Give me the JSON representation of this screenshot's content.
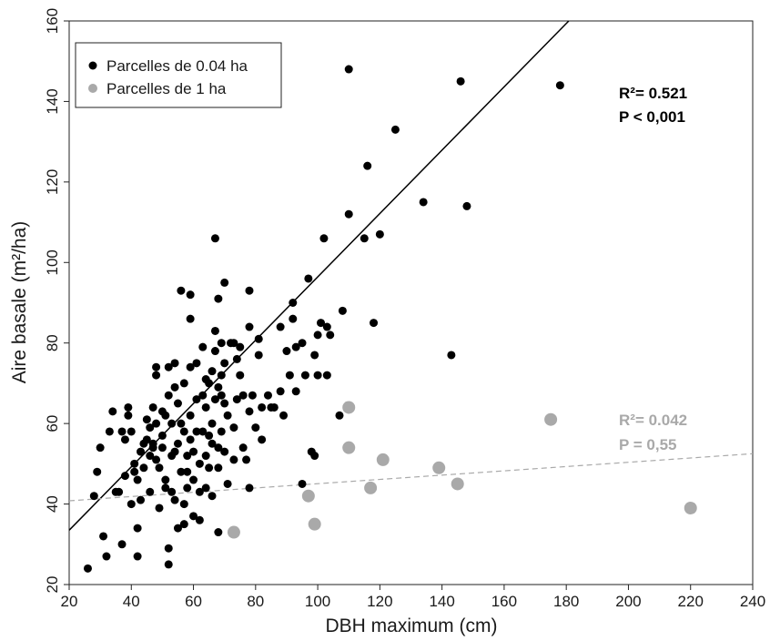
{
  "chart_data": {
    "type": "scatter",
    "xlabel": "DBH maximum (cm)",
    "ylabel": "Aire basale (m²/ha)",
    "xlim": [
      20,
      240
    ],
    "ylim": [
      20,
      160
    ],
    "xticks": [
      20,
      40,
      60,
      80,
      100,
      120,
      140,
      160,
      180,
      200,
      220,
      240
    ],
    "yticks": [
      20,
      40,
      60,
      80,
      100,
      120,
      140,
      160
    ],
    "grid": false,
    "legend_position": "top-left",
    "legend": [
      {
        "label": "Parcelles de 0.04 ha",
        "color": "#000000"
      },
      {
        "label": "Parcelles de 1 ha",
        "color": "#a9a9a9"
      }
    ],
    "series": [
      {
        "name": "Parcelles de 0.04 ha",
        "color": "#000000",
        "points": [
          [
            26,
            24
          ],
          [
            28,
            42
          ],
          [
            29,
            48
          ],
          [
            30,
            54
          ],
          [
            31,
            32
          ],
          [
            32,
            27
          ],
          [
            33,
            58
          ],
          [
            34,
            63
          ],
          [
            35,
            43
          ],
          [
            36,
            43
          ],
          [
            37,
            30
          ],
          [
            37,
            58
          ],
          [
            38,
            56
          ],
          [
            38,
            47
          ],
          [
            39,
            64
          ],
          [
            39,
            62
          ],
          [
            40,
            58
          ],
          [
            40,
            40
          ],
          [
            41,
            50
          ],
          [
            41,
            48
          ],
          [
            42,
            34
          ],
          [
            42,
            27
          ],
          [
            42,
            46
          ],
          [
            43,
            53
          ],
          [
            43,
            41
          ],
          [
            44,
            55
          ],
          [
            44,
            49
          ],
          [
            45,
            61
          ],
          [
            45,
            56
          ],
          [
            46,
            52
          ],
          [
            46,
            43
          ],
          [
            46,
            59
          ],
          [
            47,
            64
          ],
          [
            47,
            55
          ],
          [
            47,
            54
          ],
          [
            48,
            51
          ],
          [
            48,
            74
          ],
          [
            48,
            72
          ],
          [
            48,
            60
          ],
          [
            49,
            49
          ],
          [
            49,
            39
          ],
          [
            50,
            63
          ],
          [
            50,
            57
          ],
          [
            50,
            54
          ],
          [
            51,
            62
          ],
          [
            51,
            44
          ],
          [
            51,
            46
          ],
          [
            52,
            29
          ],
          [
            52,
            25
          ],
          [
            52,
            74
          ],
          [
            52,
            67
          ],
          [
            53,
            60
          ],
          [
            53,
            52
          ],
          [
            53,
            43
          ],
          [
            54,
            75
          ],
          [
            54,
            69
          ],
          [
            54,
            53
          ],
          [
            54,
            41
          ],
          [
            55,
            65
          ],
          [
            55,
            55
          ],
          [
            55,
            34
          ],
          [
            56,
            93
          ],
          [
            56,
            60
          ],
          [
            56,
            48
          ],
          [
            57,
            58
          ],
          [
            57,
            70
          ],
          [
            57,
            40
          ],
          [
            57,
            35
          ],
          [
            58,
            52
          ],
          [
            58,
            48
          ],
          [
            58,
            44
          ],
          [
            59,
            92
          ],
          [
            59,
            86
          ],
          [
            59,
            74
          ],
          [
            59,
            62
          ],
          [
            59,
            56
          ],
          [
            60,
            53
          ],
          [
            60,
            46
          ],
          [
            60,
            37
          ],
          [
            61,
            75
          ],
          [
            61,
            66
          ],
          [
            61,
            58
          ],
          [
            62,
            50
          ],
          [
            62,
            43
          ],
          [
            62,
            36
          ],
          [
            63,
            79
          ],
          [
            63,
            67
          ],
          [
            63,
            58
          ],
          [
            64,
            71
          ],
          [
            64,
            64
          ],
          [
            64,
            52
          ],
          [
            64,
            44
          ],
          [
            65,
            70
          ],
          [
            65,
            57
          ],
          [
            65,
            49
          ],
          [
            66,
            73
          ],
          [
            66,
            60
          ],
          [
            66,
            55
          ],
          [
            66,
            42
          ],
          [
            67,
            106
          ],
          [
            67,
            83
          ],
          [
            67,
            78
          ],
          [
            67,
            66
          ],
          [
            68,
            91
          ],
          [
            68,
            69
          ],
          [
            68,
            54
          ],
          [
            68,
            49
          ],
          [
            68,
            33
          ],
          [
            69,
            80
          ],
          [
            69,
            72
          ],
          [
            69,
            67
          ],
          [
            69,
            58
          ],
          [
            70,
            95
          ],
          [
            70,
            75
          ],
          [
            70,
            65
          ],
          [
            70,
            53
          ],
          [
            71,
            62
          ],
          [
            71,
            45
          ],
          [
            72,
            80
          ],
          [
            73,
            80
          ],
          [
            73,
            59
          ],
          [
            73,
            51
          ],
          [
            74,
            76
          ],
          [
            74,
            66
          ],
          [
            75,
            79
          ],
          [
            75,
            72
          ],
          [
            76,
            67
          ],
          [
            76,
            54
          ],
          [
            77,
            51
          ],
          [
            78,
            93
          ],
          [
            78,
            84
          ],
          [
            78,
            63
          ],
          [
            78,
            44
          ],
          [
            79,
            67
          ],
          [
            80,
            59
          ],
          [
            81,
            81
          ],
          [
            81,
            77
          ],
          [
            82,
            64
          ],
          [
            82,
            56
          ],
          [
            84,
            67
          ],
          [
            85,
            64
          ],
          [
            86,
            64
          ],
          [
            88,
            84
          ],
          [
            88,
            68
          ],
          [
            89,
            62
          ],
          [
            90,
            78
          ],
          [
            91,
            72
          ],
          [
            92,
            90
          ],
          [
            92,
            86
          ],
          [
            93,
            79
          ],
          [
            93,
            68
          ],
          [
            95,
            80
          ],
          [
            95,
            45
          ],
          [
            96,
            72
          ],
          [
            97,
            96
          ],
          [
            98,
            53
          ],
          [
            99,
            52
          ],
          [
            99,
            77
          ],
          [
            100,
            82
          ],
          [
            100,
            72
          ],
          [
            101,
            85
          ],
          [
            102,
            106
          ],
          [
            103,
            84
          ],
          [
            103,
            72
          ],
          [
            104,
            82
          ],
          [
            107,
            62
          ],
          [
            108,
            88
          ],
          [
            110,
            112
          ],
          [
            110,
            148
          ],
          [
            115,
            106
          ],
          [
            116,
            124
          ],
          [
            118,
            85
          ],
          [
            120,
            107
          ],
          [
            125,
            133
          ],
          [
            134,
            115
          ],
          [
            143,
            77
          ],
          [
            146,
            145
          ],
          [
            148,
            114
          ],
          [
            178,
            144
          ]
        ]
      },
      {
        "name": "Parcelles de 1 ha",
        "color": "#a9a9a9",
        "points": [
          [
            73,
            33
          ],
          [
            97,
            42
          ],
          [
            99,
            35
          ],
          [
            110,
            64
          ],
          [
            110,
            54
          ],
          [
            117,
            44
          ],
          [
            121,
            51
          ],
          [
            139,
            49
          ],
          [
            145,
            45
          ],
          [
            175,
            61
          ],
          [
            220,
            39
          ]
        ]
      }
    ],
    "fits": [
      {
        "series": "Parcelles de 0.04 ha",
        "color": "#000000",
        "style": "solid",
        "x": [
          20,
          180.8
        ],
        "y": [
          33.5,
          160
        ],
        "r2_label": "R²= 0.521",
        "p_label": "P < 0,001"
      },
      {
        "series": "Parcelles de 1 ha",
        "color": "#a9a9a9",
        "style": "dashed",
        "x": [
          20,
          240
        ],
        "y": [
          40.8,
          52.5
        ],
        "r2_label": "R²= 0.042",
        "p_label": "P = 0,55"
      }
    ]
  }
}
